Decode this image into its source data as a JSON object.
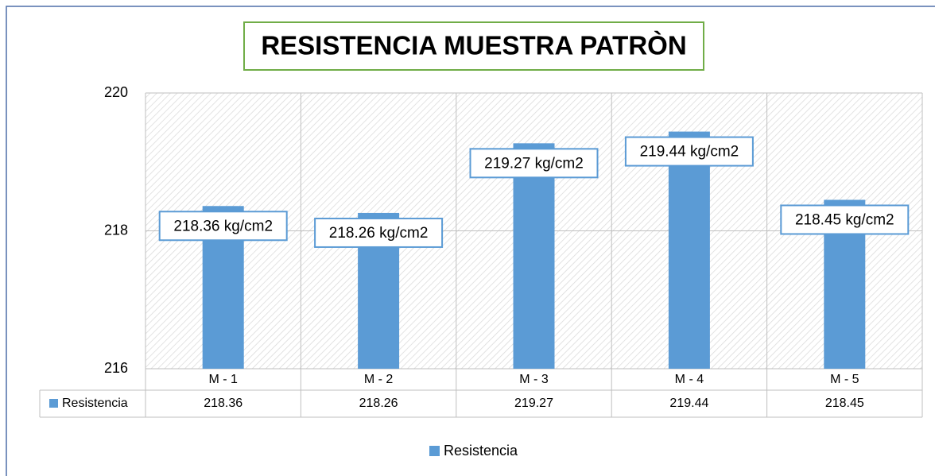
{
  "chart_data": {
    "type": "bar",
    "title": "RESISTENCIA MUESTRA PATRÒN",
    "categories": [
      "M - 1",
      "M - 2",
      "M - 3",
      "M - 4",
      "M - 5"
    ],
    "series": [
      {
        "name": "Resistencia",
        "color": "#5b9bd5",
        "values": [
          218.36,
          218.26,
          219.27,
          219.44,
          218.45
        ],
        "value_labels": [
          "218.36 kg/cm2",
          "218.26 kg/cm2",
          "219.27 kg/cm2",
          "219.44 kg/cm2",
          "218.45 kg/cm2"
        ]
      }
    ],
    "ylim": [
      216,
      220
    ],
    "yticks": [
      216,
      218,
      220
    ],
    "grid": true,
    "legend": "bottom"
  }
}
